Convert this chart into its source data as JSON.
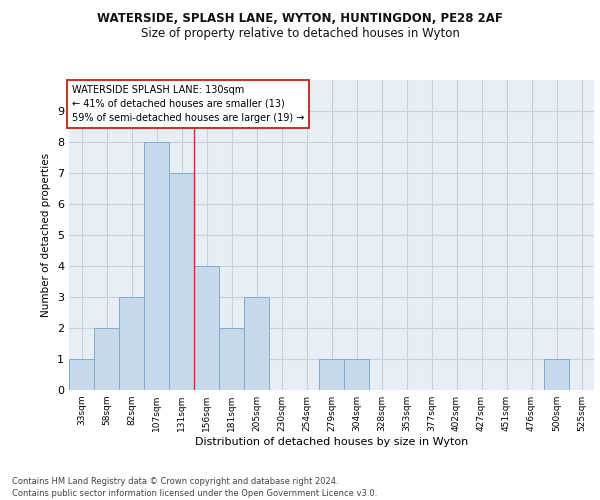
{
  "title1": "WATERSIDE, SPLASH LANE, WYTON, HUNTINGDON, PE28 2AF",
  "title2": "Size of property relative to detached houses in Wyton",
  "xlabel": "Distribution of detached houses by size in Wyton",
  "ylabel": "Number of detached properties",
  "footnote": "Contains HM Land Registry data © Crown copyright and database right 2024.\nContains public sector information licensed under the Open Government Licence v3.0.",
  "bin_labels": [
    "33sqm",
    "58sqm",
    "82sqm",
    "107sqm",
    "131sqm",
    "156sqm",
    "181sqm",
    "205sqm",
    "230sqm",
    "254sqm",
    "279sqm",
    "304sqm",
    "328sqm",
    "353sqm",
    "377sqm",
    "402sqm",
    "427sqm",
    "451sqm",
    "476sqm",
    "500sqm",
    "525sqm"
  ],
  "bar_values": [
    1,
    2,
    3,
    8,
    7,
    4,
    2,
    3,
    0,
    0,
    1,
    1,
    0,
    0,
    0,
    0,
    0,
    0,
    0,
    1,
    0
  ],
  "bar_color": "#c9d9ec",
  "bar_edge_color": "#7aaed0",
  "vline_x": 4.5,
  "vline_color": "#c0392b",
  "annotation_box_text": "WATERSIDE SPLASH LANE: 130sqm\n← 41% of detached houses are smaller (13)\n59% of semi-detached houses are larger (19) →",
  "ylim": [
    0,
    10
  ],
  "yticks": [
    0,
    1,
    2,
    3,
    4,
    5,
    6,
    7,
    8,
    9
  ],
  "grid_color": "#c8d0dc",
  "background_color": "#e8eef5",
  "fig_background": "#ffffff"
}
